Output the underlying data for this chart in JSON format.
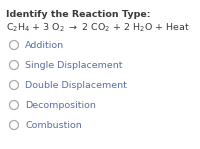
{
  "background_color": "#ffffff",
  "title_line1": "Identify the Reaction Type:",
  "title_line2_math": "C$_2$H$_4$ + 3 O$_2$ $\\rightarrow$ 2 CO$_2$ + 2 H$_2$O + Heat",
  "options": [
    "Addition",
    "Single Displacement",
    "Double Displacement",
    "Decomposition",
    "Combustion"
  ],
  "text_color": "#5a6fa0",
  "title_color": "#3c3c3c",
  "circle_edge_color": "#aaaaaa",
  "font_size_title": 6.8,
  "font_size_eq": 6.8,
  "font_size_options": 6.8,
  "fig_width": 2.0,
  "fig_height": 1.49,
  "dpi": 100
}
